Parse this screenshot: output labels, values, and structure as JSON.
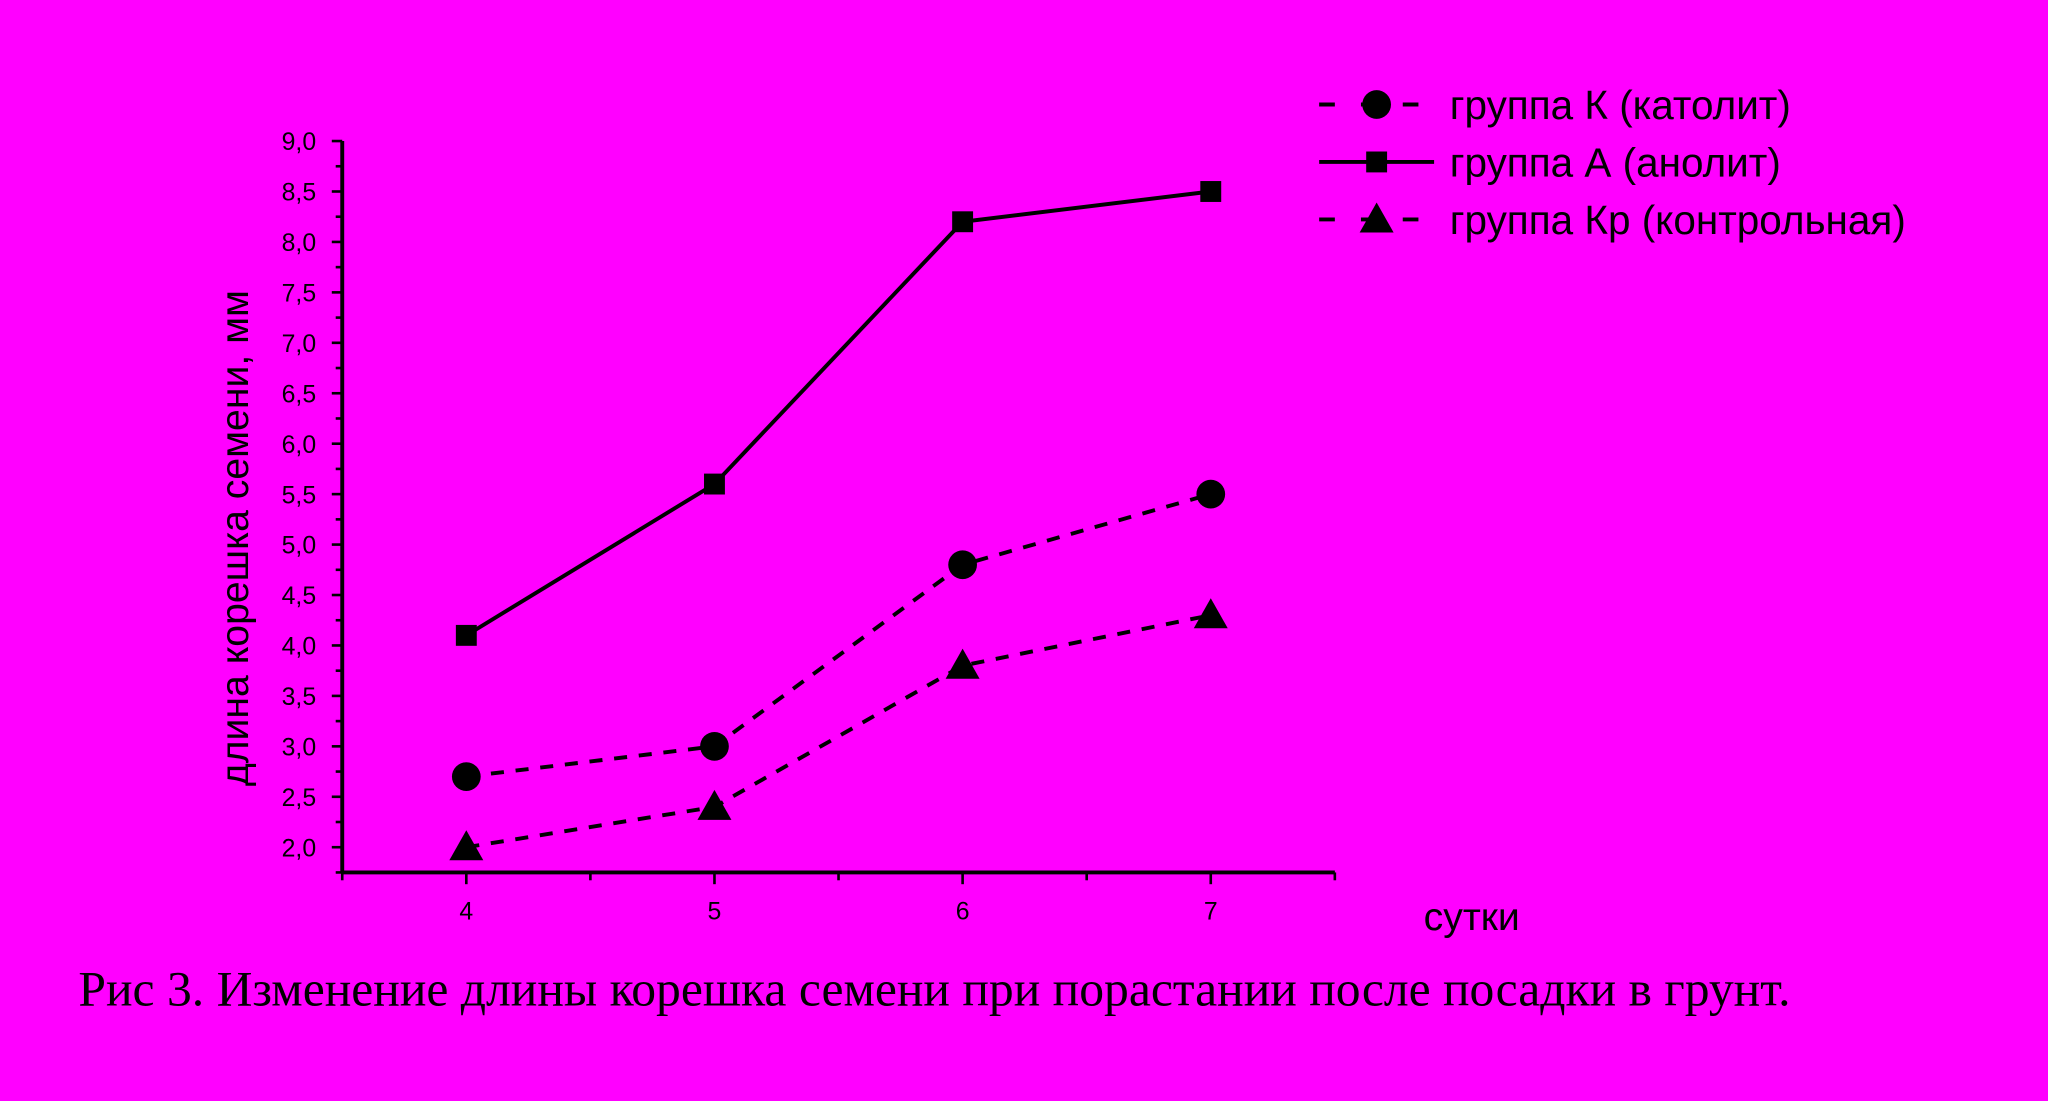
{
  "chart_data": {
    "type": "line",
    "xlabel": "сутки",
    "ylabel": "длина корешка семени, мм",
    "caption": "Рис 3. Изменение длины корешка семени при порастании после посадки в грунт.",
    "x": [
      4,
      5,
      6,
      7
    ],
    "xlim": [
      3.5,
      7.5
    ],
    "xticks": [
      4,
      5,
      6,
      7
    ],
    "ylim": [
      1.75,
      9.0
    ],
    "yticks": [
      {
        "value": 2,
        "label": "2,0"
      },
      {
        "value": 2.5,
        "label": "2,5"
      },
      {
        "value": 3,
        "label": "3,0"
      },
      {
        "value": 3.5,
        "label": "3,5"
      },
      {
        "value": 4,
        "label": "4,0"
      },
      {
        "value": 4.5,
        "label": "4,5"
      },
      {
        "value": 5,
        "label": "5,0"
      },
      {
        "value": 5.5,
        "label": "5,5"
      },
      {
        "value": 6,
        "label": "6,0"
      },
      {
        "value": 6.5,
        "label": "6,5"
      },
      {
        "value": 7,
        "label": "7,0"
      },
      {
        "value": 7.5,
        "label": "7,5"
      },
      {
        "value": 8,
        "label": "8,0"
      },
      {
        "value": 8.5,
        "label": "8,5"
      },
      {
        "value": 9,
        "label": "9,0"
      }
    ],
    "background": "#ff00ff",
    "series": [
      {
        "name": "группа К  (католит)",
        "color": "#000000",
        "marker": "circle",
        "dashed": true,
        "values": [
          2.7,
          3.0,
          4.8,
          5.5
        ]
      },
      {
        "name": "группа А  (анолит)",
        "color": "#000000",
        "marker": "square",
        "dashed": false,
        "values": [
          4.1,
          5.6,
          8.2,
          8.5
        ]
      },
      {
        "name": "группа Кр (контрольная)",
        "color": "#000000",
        "marker": "triangle",
        "dashed": true,
        "values": [
          2.0,
          2.4,
          3.8,
          4.3
        ]
      }
    ]
  }
}
